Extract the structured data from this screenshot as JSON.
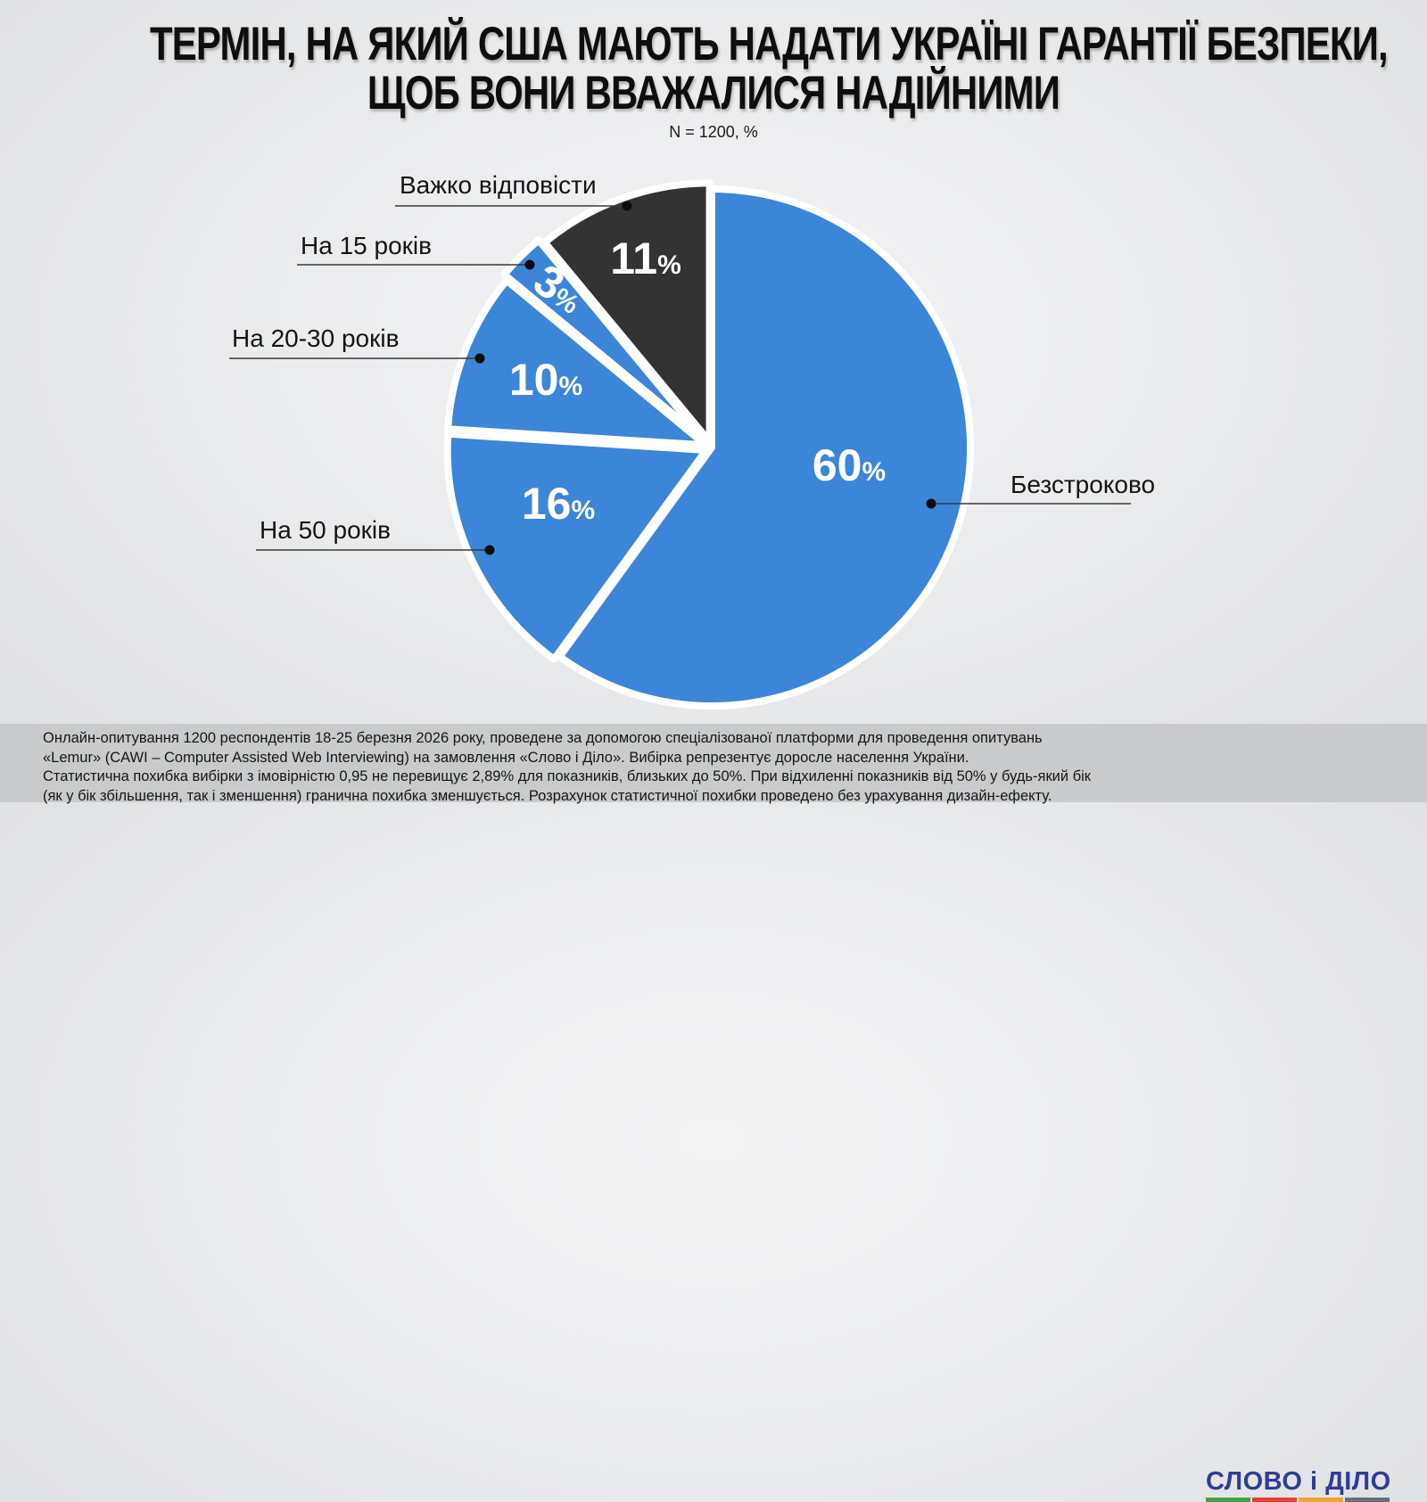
{
  "title": {
    "line1": "ТЕРМІН, НА ЯКИЙ США МАЮТЬ НАДАТИ УКРАЇНІ ГАРАНТІЇ БЕЗПЕКИ,",
    "line2": "ЩОБ ВОНИ ВВАЖАЛИСЯ НАДІЙНИМИ"
  },
  "subtitle": "N = 1200, %",
  "chart_data": {
    "type": "pie",
    "unit": "%",
    "start_angle_deg": 0,
    "direction": "clockwise",
    "slices": [
      {
        "label": "Безстроково",
        "value": 60,
        "color": "#3b86d8"
      },
      {
        "label": "На 50 років",
        "value": 16,
        "color": "#3b86d8"
      },
      {
        "label": "На 20-30 років",
        "value": 10,
        "color": "#3b86d8"
      },
      {
        "label": "На 15 років",
        "value": 3,
        "color": "#3b86d8"
      },
      {
        "label": "Важко відповісти",
        "value": 11,
        "color": "#333333"
      }
    ]
  },
  "footnote": {
    "lines": [
      "Онлайн-опитування 1200 респондентів 18-25 березня 2026 року, проведене за допомогою спеціалізованої платформи для проведення опитувань",
      "«Lemur» (CAWI – Computer Assisted Web Interviewing) на замовлення «Слово і Діло». Вибірка репрезентує доросле населення України.",
      "Статистична похибка вибірки з імовірністю 0,95 не перевищує 2,89% для показників, близьких до 50%. При відхиленні показників від 50% у будь-який бік",
      "(як у бік збільшення, так і зменшення) гранична похибка зменшується. Розрахунок статистичної похибки проведено без урахування дизайн-ефекту."
    ]
  },
  "logo": {
    "text": "СЛОВО і ДІЛО",
    "color": "#2e3d96",
    "underline_colors": [
      "#3fa34a",
      "#e6403a",
      "#f0a432",
      "#67707a"
    ]
  }
}
